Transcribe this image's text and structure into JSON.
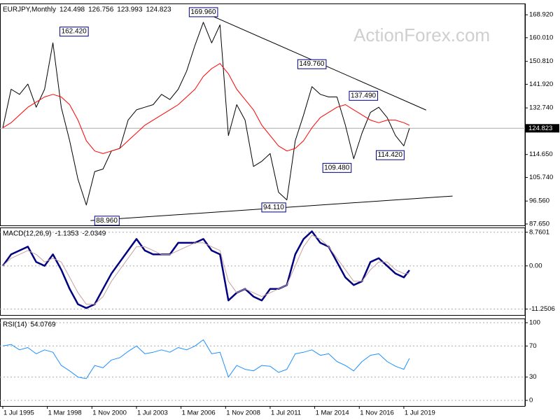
{
  "chart_data": [
    {
      "type": "line",
      "title": "EURJPY,Monthly",
      "open": 124.498,
      "high": 126.756,
      "low": 123.993,
      "watermark": "ActionForex.com",
      "x": [
        "1 Jul 1995",
        "1 Jan 1996",
        "1 Jul 1996",
        "1 Jan 1997",
        "1 Jul 1997",
        "1 Jan 1998",
        "1 Jul 1998",
        "1 Jan 1999",
        "1 Jul 1999",
        "1 Jan 2000",
        "1 Jul 2000",
        "1 Jan 2001",
        "1 Jul 2001",
        "1 Jan 2002",
        "1 Jul 2002",
        "1 Jan 2003",
        "1 Jul 2003",
        "1 Jan 2004",
        "1 Jul 2004",
        "1 Jan 2005",
        "1 Jul 2005",
        "1 Jan 2006",
        "1 Jul 2006",
        "1 Jan 2007",
        "1 Jul 2007",
        "1 Jan 2008",
        "1 Jul 2008",
        "1 Jan 2009",
        "1 Jul 2009",
        "1 Jan 2010",
        "1 Jul 2010",
        "1 Jan 2011",
        "1 Jul 2011",
        "1 Jan 2012",
        "1 Jul 2012",
        "1 Jan 2013",
        "1 Jul 2013",
        "1 Jan 2014",
        "1 Jul 2014",
        "1 Jan 2015",
        "1 Jul 2015",
        "1 Jan 2016",
        "1 Jul 2016",
        "1 Jan 2017",
        "1 Jul 2017",
        "1 Jan 2018",
        "1 Jul 2018",
        "1 Jan 2019",
        "1 Jul 2019",
        "1 Nov 2019"
      ],
      "series": [
        {
          "color": "#000000",
          "values": [
            125,
            140,
            138,
            142,
            133,
            140,
            158,
            133,
            120,
            105,
            95,
            108,
            109,
            116,
            117,
            128,
            132,
            133,
            134,
            138,
            136,
            140,
            147,
            157,
            166,
            158,
            165,
            122,
            134,
            128,
            110,
            112,
            115,
            100,
            97,
            120,
            130,
            141,
            138,
            137,
            137,
            126,
            113,
            123,
            131,
            133,
            129,
            122,
            118,
            124.823
          ]
        },
        {
          "color": "#ff0000",
          "values": [
            125,
            127,
            130,
            133,
            135,
            137,
            138,
            137,
            134,
            128,
            120,
            116,
            115,
            116,
            117,
            120,
            123,
            126,
            128,
            130,
            132,
            134,
            137,
            140,
            145,
            148,
            150,
            146,
            140,
            136,
            132,
            126,
            122,
            118,
            116,
            117,
            120,
            125,
            129,
            131,
            133,
            134,
            132,
            130,
            128,
            127,
            128,
            128,
            127,
            126
          ]
        }
      ],
      "xlim": [
        "1 May 1995",
        "1 Oct 2026"
      ],
      "ylim": [
        87.1,
        173.3
      ],
      "yticks": [
        {
          "value": 168.92,
          "label": "168.920"
        },
        {
          "value": 160.01,
          "label": "160.010"
        },
        {
          "value": 150.81,
          "label": "150.810"
        },
        {
          "value": 141.92,
          "label": "141.920"
        },
        {
          "value": 132.74,
          "label": "132.740"
        },
        {
          "value": 114.65,
          "label": "114.650"
        },
        {
          "value": 105.74,
          "label": "105.740"
        },
        {
          "value": 96.56,
          "label": "96.560"
        },
        {
          "value": 87.65,
          "label": "87.650"
        }
      ],
      "grid": false,
      "annotations": [
        {
          "x": "1 Sep 1998",
          "value": 162.42,
          "label": "162.420"
        },
        {
          "x": "1 Jul 2007",
          "value": 169.96,
          "label": "169.960"
        },
        {
          "x": "1 Dec 2014",
          "value": 149.76,
          "label": "149.760"
        },
        {
          "x": "1 Jan 2018",
          "value": 137.49,
          "label": "137.490"
        },
        {
          "x": "1 Aug 2019",
          "value": 114.42,
          "label": "114.420"
        },
        {
          "x": "1 Jun 2016",
          "value": 109.48,
          "label": "109.480"
        },
        {
          "x": "1 Jul 2012",
          "value": 94.11,
          "label": "94.110"
        },
        {
          "x": "1 Oct 2000",
          "value": 88.96,
          "label": "88.960"
        }
      ],
      "trendlines": [
        {
          "x": [
            "1 Jul 2007",
            "1 Nov 2020"
          ],
          "y": [
            169.96,
            131.9
          ]
        },
        {
          "x": [
            "1 Oct 2000",
            "1 Jun 2022"
          ],
          "y": [
            88.96,
            98.5
          ]
        }
      ]
    },
    {
      "type": "line",
      "title": "MACD(12,26,9)",
      "x": [
        "1 Jul 1995",
        "1 Jan 1996",
        "1 Jul 1996",
        "1 Jan 1997",
        "1 Jul 1997",
        "1 Jan 1998",
        "1 Jul 1998",
        "1 Jan 1999",
        "1 Jul 1999",
        "1 Jan 2000",
        "1 Jul 2000",
        "1 Jan 2001",
        "1 Jul 2001",
        "1 Jan 2002",
        "1 Jul 2002",
        "1 Jan 2003",
        "1 Jul 2003",
        "1 Jan 2004",
        "1 Jul 2004",
        "1 Jan 2005",
        "1 Jul 2005",
        "1 Jan 2006",
        "1 Jul 2006",
        "1 Jan 2007",
        "1 Jul 2007",
        "1 Jan 2008",
        "1 Jul 2008",
        "1 Jan 2009",
        "1 Jul 2009",
        "1 Jan 2010",
        "1 Jul 2010",
        "1 Jan 2011",
        "1 Jul 2011",
        "1 Jan 2012",
        "1 Jul 2012",
        "1 Jan 2013",
        "1 Jul 2013",
        "1 Jan 2014",
        "1 Jul 2014",
        "1 Jan 2015",
        "1 Jul 2015",
        "1 Jan 2016",
        "1 Jul 2016",
        "1 Jan 2017",
        "1 Jul 2017",
        "1 Jan 2018",
        "1 Jul 2018",
        "1 Jan 2019",
        "1 Jul 2019",
        "1 Nov 2019"
      ],
      "series": [
        {
          "color": "#000080",
          "values": [
            0,
            3,
            4,
            5,
            1,
            0,
            3,
            -1,
            -6,
            -10,
            -11,
            -10,
            -6,
            -2,
            1,
            4,
            7,
            4,
            3,
            3,
            3,
            6,
            6,
            6,
            7,
            4,
            3,
            -9,
            -7,
            -6,
            -8,
            -9,
            -6,
            -6,
            -5,
            3,
            7,
            9,
            6,
            5,
            1,
            -3,
            -5,
            -4,
            1,
            2,
            0,
            -2,
            -3,
            -1.1353
          ]
        },
        {
          "color": "#c8a0a0",
          "values": [
            0,
            2,
            3,
            4,
            3,
            1,
            2,
            1,
            -3,
            -7,
            -10,
            -10,
            -8,
            -4,
            -1,
            2,
            5,
            5,
            4,
            3,
            3,
            4,
            5,
            6,
            6,
            5,
            4,
            -4,
            -7,
            -6,
            -7,
            -8,
            -7,
            -6,
            -5,
            0,
            5,
            8,
            7,
            5,
            2,
            -1,
            -4,
            -4,
            -1,
            1,
            1,
            -1,
            -2,
            -2.0349
          ]
        }
      ],
      "xlim": [
        "1 May 1995",
        "1 Oct 2026"
      ],
      "ylim": [
        -12.8,
        10.0
      ],
      "yticks": [
        8.7601,
        {
          "value": 0,
          "label": "0.00"
        },
        -11.2506
      ],
      "grid": true
    },
    {
      "type": "line",
      "title": "RSI(14)",
      "x": [
        "1 Jul 1995",
        "1 Jan 1996",
        "1 Jul 1996",
        "1 Jan 1997",
        "1 Jul 1997",
        "1 Jan 1998",
        "1 Jul 1998",
        "1 Jan 1999",
        "1 Jul 1999",
        "1 Jan 2000",
        "1 Jul 2000",
        "1 Jan 2001",
        "1 Jul 2001",
        "1 Jan 2002",
        "1 Jul 2002",
        "1 Jan 2003",
        "1 Jul 2003",
        "1 Jan 2004",
        "1 Jul 2004",
        "1 Jan 2005",
        "1 Jul 2005",
        "1 Jan 2006",
        "1 Jul 2006",
        "1 Jan 2007",
        "1 Jul 2007",
        "1 Jan 2008",
        "1 Jul 2008",
        "1 Jan 2009",
        "1 Jul 2009",
        "1 Jan 2010",
        "1 Jul 2010",
        "1 Jan 2011",
        "1 Jul 2011",
        "1 Jan 2012",
        "1 Jul 2012",
        "1 Jan 2013",
        "1 Jul 2013",
        "1 Jan 2014",
        "1 Jul 2014",
        "1 Jan 2015",
        "1 Jul 2015",
        "1 Jan 2016",
        "1 Jul 2016",
        "1 Jan 2017",
        "1 Jul 2017",
        "1 Jan 2018",
        "1 Jul 2018",
        "1 Jan 2019",
        "1 Jul 2019",
        "1 Nov 2019"
      ],
      "series": [
        {
          "color": "#1e90ff",
          "values": [
            70,
            72,
            65,
            68,
            60,
            65,
            62,
            45,
            38,
            30,
            28,
            45,
            42,
            52,
            55,
            63,
            70,
            60,
            62,
            65,
            62,
            68,
            65,
            70,
            78,
            60,
            62,
            30,
            45,
            40,
            38,
            45,
            44,
            36,
            40,
            60,
            62,
            65,
            58,
            60,
            50,
            45,
            38,
            50,
            58,
            60,
            50,
            44,
            40,
            54.0769
          ]
        }
      ],
      "xlim": [
        "1 May 1995",
        "1 Oct 2026"
      ],
      "ylim": [
        -7.2,
        105.4
      ],
      "yticks": [
        100,
        70,
        30,
        0
      ],
      "grid": true,
      "xticks": [
        "1 Jul 1995",
        "1 Mar 1998",
        "1 Nov 2000",
        "1 Jul 2003",
        "1 Mar 2006",
        "1 Nov 2008",
        "1 Jul 2011",
        "1 Mar 2014",
        "1 Nov 2016",
        "1 Jul 2019"
      ]
    }
  ]
}
